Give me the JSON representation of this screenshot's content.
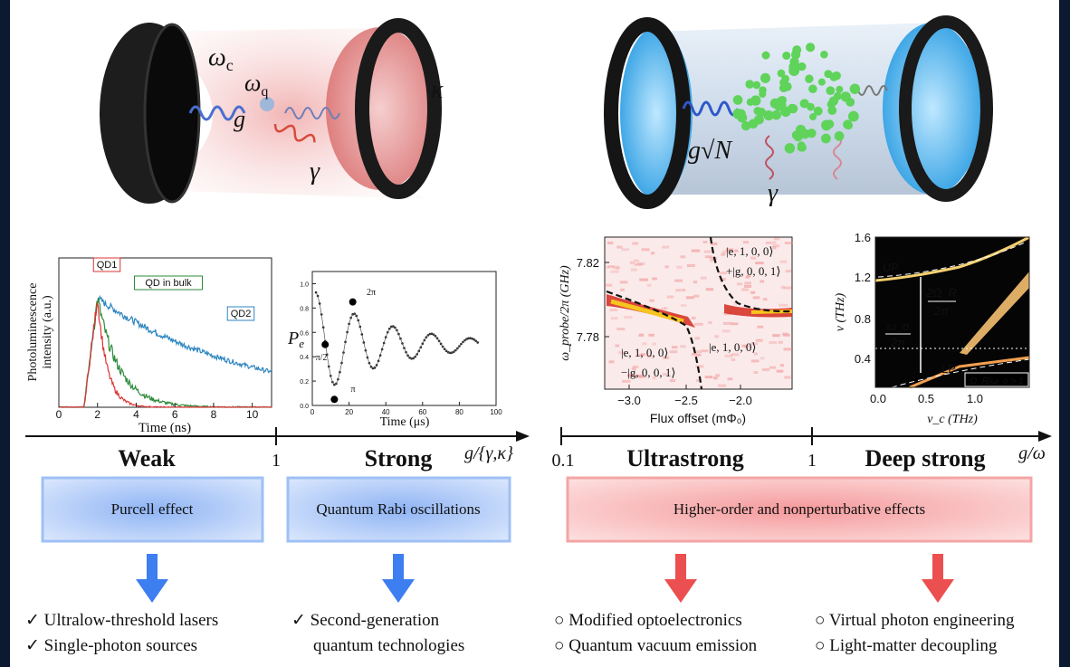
{
  "top_left": {
    "omega_c": "ω",
    "omega_c_sub": "c",
    "omega_q": "ω",
    "omega_q_sub": "q",
    "g": "g",
    "kappa": "κ",
    "gamma": "γ"
  },
  "top_right": {
    "coupling": "g√N",
    "gamma": "γ"
  },
  "plot_qd": {
    "y_label_1": "Photoluminescence",
    "y_label_2": "intensity (a.u.)",
    "x_label": "Time (ns)",
    "xticks": [
      "0",
      "2",
      "4",
      "6",
      "8",
      "10"
    ],
    "legend": [
      "QD1",
      "QD in bulk",
      "QD2"
    ]
  },
  "plot_rabi": {
    "y_label": "P",
    "y_label_sub": "e",
    "x_label": "Time (μs)",
    "xticks": [
      "0",
      "20",
      "40",
      "60",
      "80",
      "100"
    ],
    "yticks": [
      "0.0",
      "0.2",
      "0.4",
      "0.6",
      "0.8",
      "1.0"
    ],
    "annotations": [
      "π/2",
      "π",
      "2π"
    ]
  },
  "plot_flux": {
    "y_label": "ω_probe/2π (GHz)",
    "x_label": "Flux offset (mΦ₀)",
    "yticks": [
      "7.82",
      "7.78"
    ],
    "xticks": [
      "−3.0",
      "−2.5",
      "−2.0"
    ],
    "annotations": [
      "|e, 1, 0, 0⟩",
      "+|g, 0, 0, 1⟩",
      "|e, 1, 0, 0⟩",
      "−|g, 0, 0, 1⟩",
      "|e, 1, 0, 0⟩"
    ]
  },
  "plot_thz": {
    "y_label": "ν (THz)",
    "x_label": "ν_c (THz)",
    "yticks": [
      "1.6",
      "1.2",
      "0.8",
      "0.4"
    ],
    "xticks": [
      "0.0",
      "0.5",
      "1.0"
    ],
    "labels": [
      "UP",
      "LP",
      "2Ω_R",
      "2π",
      "ω_o",
      "2π",
      "Ω_R/ω_o > 1"
    ]
  },
  "axis": {
    "left": [
      "Weak",
      "1",
      "Strong",
      "g/{γ,κ}"
    ],
    "right": [
      "0.1",
      "Ultrastrong",
      "1",
      "Deep strong",
      "g/ω"
    ]
  },
  "boxes": [
    "Purcell effect",
    "Quantum Rabi oscillations",
    "Higher-order and nonperturbative effects"
  ],
  "applications": {
    "weak": [
      "✓  Ultralow-threshold lasers",
      "✓  Single-photon sources"
    ],
    "strong": [
      "✓  Second-generation",
      "quantum technologies"
    ],
    "ultrastrong": [
      "○ Modified optoelectronics",
      "○ Quantum vacuum emission"
    ],
    "deep_strong": [
      "○ Virtual photon engineering",
      "○ Light-matter decoupling"
    ]
  }
}
